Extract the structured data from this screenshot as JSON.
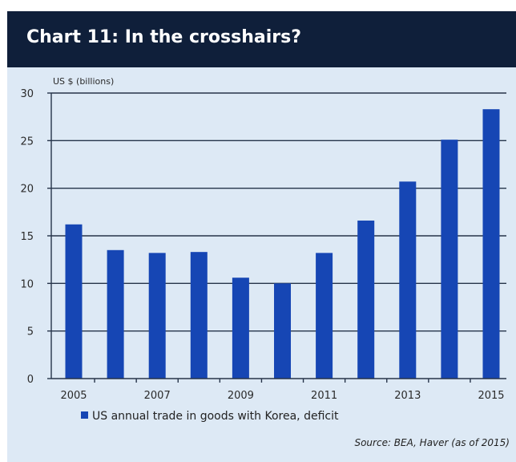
{
  "colors": {
    "title_bar": "#0f1f3a",
    "panel": "#dde9f5",
    "bar": "#1646b4",
    "gridline": "#26344a",
    "axis": "#26344a"
  },
  "chart_data": {
    "type": "bar",
    "title": "Chart 11: In the crosshairs?",
    "ylabel": "US $ (billions)",
    "categories": [
      "2005",
      "2006",
      "2007",
      "2008",
      "2009",
      "2010",
      "2011",
      "2012",
      "2013",
      "2014",
      "2015"
    ],
    "x_tick_labels": [
      "2005",
      "",
      "2007",
      "",
      "2009",
      "",
      "2011",
      "",
      "2013",
      "",
      "2015"
    ],
    "y_ticks": [
      0,
      5,
      10,
      15,
      20,
      25,
      30
    ],
    "ylim": [
      0,
      30
    ],
    "grid": true,
    "series": [
      {
        "name": "US annual trade in goods with Korea, deficit",
        "values": [
          16.2,
          13.5,
          13.2,
          13.3,
          10.6,
          10.0,
          13.2,
          16.6,
          20.7,
          25.1,
          28.3
        ]
      }
    ],
    "legend_position": "bottom",
    "source": "Source: BEA, Haver (as of 2015)"
  }
}
